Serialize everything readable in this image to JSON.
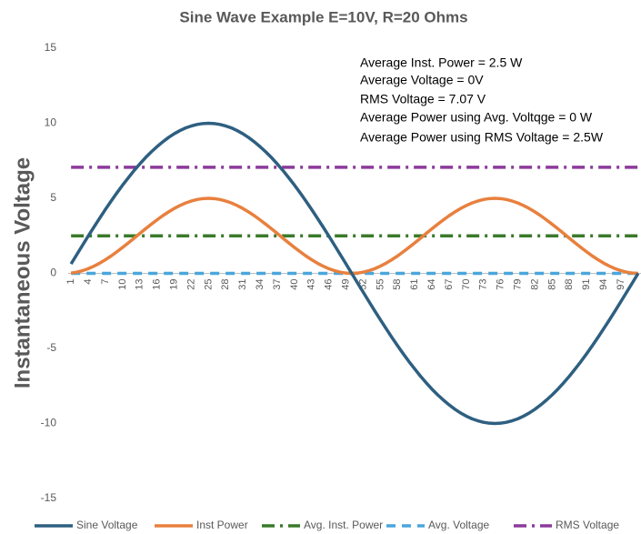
{
  "chart_data": {
    "type": "line",
    "title": "Sine Wave Example E=10V, R=20 Ohms",
    "y_label": "Instantaneous Voltage",
    "annotations": [
      "Average Inst. Power =  2.5 W",
      "Average Voltage = 0V",
      "RMS Voltage = 7.07 V",
      "Average Power using Avg. Voltqge = 0 W",
      "Average Power using RMS Voltage = 2.5W"
    ],
    "categories": [
      1,
      null,
      null,
      4,
      null,
      null,
      7,
      null,
      null,
      10,
      null,
      null,
      13,
      null,
      null,
      16,
      null,
      null,
      19,
      null,
      null,
      22,
      null,
      null,
      25,
      null,
      null,
      28,
      null,
      null,
      31,
      null,
      null,
      34,
      null,
      null,
      37,
      null,
      null,
      40,
      null,
      null,
      43,
      null,
      null,
      46,
      null,
      null,
      49,
      null,
      null,
      52,
      null,
      null,
      55,
      null,
      null,
      58,
      null,
      null,
      61,
      null,
      null,
      64,
      null,
      null,
      67,
      null,
      null,
      70,
      null,
      null,
      73,
      null,
      null,
      76,
      null,
      null,
      79,
      null,
      null,
      82,
      null,
      null,
      85,
      null,
      null,
      88,
      null,
      null,
      91,
      null,
      null,
      94,
      null,
      null,
      97,
      null,
      null,
      null
    ],
    "ylim": [
      -15,
      15
    ],
    "yticks": [
      -15,
      -10,
      -5,
      0,
      5,
      10,
      15
    ],
    "grid": false,
    "legend": "bottom",
    "series": [
      {
        "name": "Sine Voltage",
        "color": "#2e5f80",
        "dash": "solid",
        "values": [
          0.63,
          1.25,
          1.87,
          2.49,
          3.09,
          3.68,
          4.26,
          4.82,
          5.36,
          5.88,
          6.37,
          6.85,
          7.29,
          7.71,
          8.09,
          8.44,
          8.76,
          9.05,
          9.3,
          9.51,
          9.69,
          9.82,
          9.92,
          9.98,
          10,
          9.98,
          9.92,
          9.82,
          9.69,
          9.51,
          9.3,
          9.05,
          8.76,
          8.44,
          8.09,
          7.71,
          7.29,
          6.85,
          6.37,
          5.88,
          5.36,
          4.82,
          4.26,
          3.68,
          3.09,
          2.49,
          1.87,
          1.25,
          0.63,
          0,
          -0.63,
          -1.25,
          -1.87,
          -2.49,
          -3.09,
          -3.68,
          -4.26,
          -4.82,
          -5.36,
          -5.88,
          -6.37,
          -6.85,
          -7.29,
          -7.71,
          -8.09,
          -8.44,
          -8.76,
          -9.05,
          -9.3,
          -9.51,
          -9.69,
          -9.82,
          -9.92,
          -9.98,
          -10,
          -9.98,
          -9.92,
          -9.82,
          -9.69,
          -9.51,
          -9.3,
          -9.05,
          -8.76,
          -8.44,
          -8.09,
          -7.71,
          -7.29,
          -6.85,
          -6.37,
          -5.88,
          -5.36,
          -4.82,
          -4.26,
          -3.68,
          -3.09,
          -2.49,
          -1.87,
          -1.25,
          -0.63,
          0
        ]
      },
      {
        "name": "Inst Power",
        "color": "#e8803e",
        "dash": "solid",
        "values": [
          0.02,
          0.08,
          0.18,
          0.31,
          0.48,
          0.68,
          0.91,
          1.16,
          1.44,
          1.73,
          2.03,
          2.34,
          2.66,
          2.97,
          3.27,
          3.56,
          3.84,
          4.09,
          4.32,
          4.52,
          4.69,
          4.82,
          4.92,
          4.98,
          5,
          4.98,
          4.92,
          4.82,
          4.69,
          4.52,
          4.32,
          4.09,
          3.84,
          3.56,
          3.27,
          2.97,
          2.66,
          2.34,
          2.03,
          1.73,
          1.44,
          1.16,
          0.91,
          0.68,
          0.48,
          0.31,
          0.18,
          0.08,
          0.02,
          0,
          0.02,
          0.08,
          0.18,
          0.31,
          0.48,
          0.68,
          0.91,
          1.16,
          1.44,
          1.73,
          2.03,
          2.34,
          2.66,
          2.97,
          3.27,
          3.56,
          3.84,
          4.09,
          4.32,
          4.52,
          4.69,
          4.82,
          4.92,
          4.98,
          5,
          4.98,
          4.92,
          4.82,
          4.69,
          4.52,
          4.32,
          4.09,
          3.84,
          3.56,
          3.27,
          2.97,
          2.66,
          2.34,
          2.03,
          1.73,
          1.44,
          1.16,
          0.91,
          0.68,
          0.48,
          0.31,
          0.18,
          0.08,
          0.02,
          0
        ]
      },
      {
        "name": "Avg. Inst. Power",
        "color": "#3a7a2a",
        "dash": "dashdot",
        "values": [
          2.5,
          2.5,
          2.5,
          2.5,
          2.5,
          2.5,
          2.5,
          2.5,
          2.5,
          2.5,
          2.5,
          2.5,
          2.5,
          2.5,
          2.5,
          2.5,
          2.5,
          2.5,
          2.5,
          2.5,
          2.5,
          2.5,
          2.5,
          2.5,
          2.5,
          2.5,
          2.5,
          2.5,
          2.5,
          2.5,
          2.5,
          2.5,
          2.5,
          2.5,
          2.5,
          2.5,
          2.5,
          2.5,
          2.5,
          2.5,
          2.5,
          2.5,
          2.5,
          2.5,
          2.5,
          2.5,
          2.5,
          2.5,
          2.5,
          2.5,
          2.5,
          2.5,
          2.5,
          2.5,
          2.5,
          2.5,
          2.5,
          2.5,
          2.5,
          2.5,
          2.5,
          2.5,
          2.5,
          2.5,
          2.5,
          2.5,
          2.5,
          2.5,
          2.5,
          2.5,
          2.5,
          2.5,
          2.5,
          2.5,
          2.5,
          2.5,
          2.5,
          2.5,
          2.5,
          2.5,
          2.5,
          2.5,
          2.5,
          2.5,
          2.5,
          2.5,
          2.5,
          2.5,
          2.5,
          2.5,
          2.5,
          2.5,
          2.5,
          2.5,
          2.5,
          2.5,
          2.5,
          2.5,
          2.5,
          2.5
        ]
      },
      {
        "name": "Avg. Voltage",
        "color": "#4aa6dc",
        "dash": "dash",
        "values": [
          0,
          0,
          0,
          0,
          0,
          0,
          0,
          0,
          0,
          0,
          0,
          0,
          0,
          0,
          0,
          0,
          0,
          0,
          0,
          0,
          0,
          0,
          0,
          0,
          0,
          0,
          0,
          0,
          0,
          0,
          0,
          0,
          0,
          0,
          0,
          0,
          0,
          0,
          0,
          0,
          0,
          0,
          0,
          0,
          0,
          0,
          0,
          0,
          0,
          0,
          0,
          0,
          0,
          0,
          0,
          0,
          0,
          0,
          0,
          0,
          0,
          0,
          0,
          0,
          0,
          0,
          0,
          0,
          0,
          0,
          0,
          0,
          0,
          0,
          0,
          0,
          0,
          0,
          0,
          0,
          0,
          0,
          0,
          0,
          0,
          0,
          0,
          0,
          0,
          0,
          0,
          0,
          0,
          0,
          0,
          0,
          0,
          0,
          0,
          0
        ]
      },
      {
        "name": "RMS Voltage",
        "color": "#8c3a9b",
        "dash": "dashdot",
        "values": [
          7.07,
          7.07,
          7.07,
          7.07,
          7.07,
          7.07,
          7.07,
          7.07,
          7.07,
          7.07,
          7.07,
          7.07,
          7.07,
          7.07,
          7.07,
          7.07,
          7.07,
          7.07,
          7.07,
          7.07,
          7.07,
          7.07,
          7.07,
          7.07,
          7.07,
          7.07,
          7.07,
          7.07,
          7.07,
          7.07,
          7.07,
          7.07,
          7.07,
          7.07,
          7.07,
          7.07,
          7.07,
          7.07,
          7.07,
          7.07,
          7.07,
          7.07,
          7.07,
          7.07,
          7.07,
          7.07,
          7.07,
          7.07,
          7.07,
          7.07,
          7.07,
          7.07,
          7.07,
          7.07,
          7.07,
          7.07,
          7.07,
          7.07,
          7.07,
          7.07,
          7.07,
          7.07,
          7.07,
          7.07,
          7.07,
          7.07,
          7.07,
          7.07,
          7.07,
          7.07,
          7.07,
          7.07,
          7.07,
          7.07,
          7.07,
          7.07,
          7.07,
          7.07,
          7.07,
          7.07,
          7.07,
          7.07,
          7.07,
          7.07,
          7.07,
          7.07,
          7.07,
          7.07,
          7.07,
          7.07,
          7.07,
          7.07,
          7.07,
          7.07,
          7.07,
          7.07,
          7.07,
          7.07,
          7.07,
          7.07
        ]
      }
    ]
  }
}
